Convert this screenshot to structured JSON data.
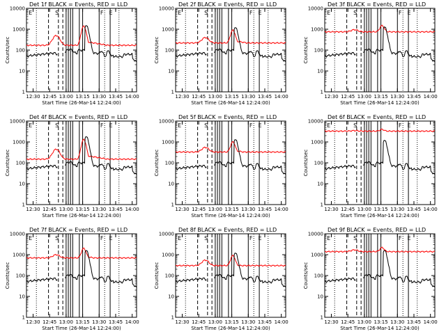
{
  "figure": {
    "background": "#ffffff",
    "ink_color": "#000000"
  },
  "chart_data": [
    {
      "type": "line",
      "title": "Det 1f BLACK = Events, RED = LLD",
      "xlabel": "Start Time (26-Mar-14 12:24:00)",
      "ylabel": "Counts/sec",
      "x_ticks": [
        "12:30",
        "12:45",
        "13:00",
        "13:15",
        "13:30",
        "13:45",
        "14:00"
      ],
      "y_ticks": [
        "1",
        "10",
        "100",
        "1000",
        "10000"
      ],
      "ylim": [
        1,
        10000
      ],
      "y_scale": "log",
      "xlim": [
        "12:24",
        "14:04"
      ],
      "grid": false,
      "legend": "none",
      "markers": [
        "E",
        "S",
        "F",
        "E"
      ],
      "series": [
        {
          "color": "#ff0000",
          "profile": "lld",
          "base": 170,
          "bump1": 500,
          "peak": 1400,
          "after": 250,
          "end": 160
        },
        {
          "color": "#000000",
          "profile": "events",
          "base": 50,
          "bump1": 110,
          "peak": 1500,
          "after": 70,
          "end": 15
        }
      ]
    },
    {
      "type": "line",
      "title": "Det 2f BLACK = Events, RED = LLD",
      "xlabel": "Start Time (26-Mar-14 12:24:00)",
      "ylabel": "Counts/sec",
      "x_ticks": [
        "12:30",
        "12:45",
        "13:00",
        "13:15",
        "13:30",
        "13:45",
        "14:00"
      ],
      "y_ticks": [
        "1",
        "10",
        "100",
        "1000",
        "10000"
      ],
      "ylim": [
        1,
        10000
      ],
      "y_scale": "log",
      "xlim": [
        "12:24",
        "14:04"
      ],
      "grid": false,
      "legend": "none",
      "markers": [
        "E",
        "S",
        "F",
        "E"
      ],
      "series": [
        {
          "color": "#ff0000",
          "profile": "lld",
          "base": 220,
          "bump1": 400,
          "peak": 900,
          "after": 270,
          "end": 200
        },
        {
          "color": "#000000",
          "profile": "events",
          "base": 50,
          "bump1": 110,
          "peak": 1200,
          "after": 70,
          "end": 15
        }
      ]
    },
    {
      "type": "line",
      "title": "Det 3f BLACK = Events, RED = LLD",
      "xlabel": "Start Time (26-Mar-14 12:24:00)",
      "ylabel": "Counts/sec",
      "x_ticks": [
        "12:30",
        "12:45",
        "13:00",
        "13:15",
        "13:30",
        "13:45",
        "14:00"
      ],
      "y_ticks": [
        "1",
        "10",
        "100",
        "1000",
        "10000"
      ],
      "ylim": [
        1,
        10000
      ],
      "y_scale": "log",
      "xlim": [
        "12:24",
        "14:04"
      ],
      "grid": false,
      "legend": "none",
      "markers": [
        "E",
        "S",
        "F",
        "E"
      ],
      "series": [
        {
          "color": "#ff0000",
          "profile": "lld",
          "base": 750,
          "bump1": 950,
          "peak": 1500,
          "after": 750,
          "end": 750
        },
        {
          "color": "#000000",
          "profile": "events",
          "base": 50,
          "bump1": 110,
          "peak": 1300,
          "after": 70,
          "end": 15
        }
      ]
    },
    {
      "type": "line",
      "title": "Det 4f BLACK = Events, RED = LLD",
      "xlabel": "Start Time (26-Mar-14 12:24:00)",
      "ylabel": "Counts/sec",
      "x_ticks": [
        "12:30",
        "12:45",
        "13:00",
        "13:15",
        "13:30",
        "13:45",
        "14:00"
      ],
      "y_ticks": [
        "1",
        "10",
        "100",
        "1000",
        "10000"
      ],
      "ylim": [
        1,
        10000
      ],
      "y_scale": "log",
      "xlim": [
        "12:24",
        "14:04"
      ],
      "grid": false,
      "legend": "none",
      "markers": [
        "E",
        "S",
        "F",
        "E"
      ],
      "series": [
        {
          "color": "#ff0000",
          "profile": "lld",
          "base": 150,
          "bump1": 450,
          "peak": 1300,
          "after": 220,
          "end": 150
        },
        {
          "color": "#000000",
          "profile": "events",
          "base": 50,
          "bump1": 110,
          "peak": 1800,
          "after": 70,
          "end": 15
        }
      ]
    },
    {
      "type": "line",
      "title": "Det 5f BLACK = Events, RED = LLD",
      "xlabel": "Start Time (26-Mar-14 12:24:00)",
      "ylabel": "Counts/sec",
      "x_ticks": [
        "12:30",
        "12:45",
        "13:00",
        "13:15",
        "13:30",
        "13:45",
        "14:00"
      ],
      "y_ticks": [
        "1",
        "10",
        "100",
        "1000",
        "10000"
      ],
      "ylim": [
        1,
        10000
      ],
      "y_scale": "log",
      "xlim": [
        "12:24",
        "14:04"
      ],
      "grid": false,
      "legend": "none",
      "markers": [
        "E",
        "S",
        "F",
        "E"
      ],
      "series": [
        {
          "color": "#ff0000",
          "profile": "lld",
          "base": 330,
          "bump1": 550,
          "peak": 1000,
          "after": 380,
          "end": 300
        },
        {
          "color": "#000000",
          "profile": "events",
          "base": 50,
          "bump1": 110,
          "peak": 1300,
          "after": 70,
          "end": 15
        }
      ]
    },
    {
      "type": "line",
      "title": "Det 6f BLACK = Events, RED = LLD",
      "xlabel": "Start Time (26-Mar-14 12:24:00)",
      "ylabel": "Counts/sec",
      "x_ticks": [
        "12:30",
        "12:45",
        "13:00",
        "13:15",
        "13:30",
        "13:45",
        "14:00"
      ],
      "y_ticks": [
        "1",
        "10",
        "100",
        "1000",
        "10000"
      ],
      "ylim": [
        1,
        10000
      ],
      "y_scale": "log",
      "xlim": [
        "12:24",
        "14:04"
      ],
      "grid": false,
      "legend": "none",
      "markers": [
        "E",
        "S",
        "F",
        "E"
      ],
      "series": [
        {
          "color": "#ff0000",
          "profile": "lld",
          "base": 3300,
          "bump1": 3500,
          "peak": 4000,
          "after": 3300,
          "end": 3300
        },
        {
          "color": "#000000",
          "profile": "events",
          "base": 50,
          "bump1": 110,
          "peak": 1200,
          "after": 70,
          "end": 15
        }
      ]
    },
    {
      "type": "line",
      "title": "Det 7f BLACK = Events, RED = LLD",
      "xlabel": "Start Time (26-Mar-14 12:24:00)",
      "ylabel": "Counts/sec",
      "x_ticks": [
        "12:30",
        "12:45",
        "13:00",
        "13:15",
        "13:30",
        "13:45",
        "14:00"
      ],
      "y_ticks": [
        "1",
        "10",
        "100",
        "1000",
        "10000"
      ],
      "ylim": [
        1,
        10000
      ],
      "y_scale": "log",
      "xlim": [
        "12:24",
        "14:04"
      ],
      "grid": false,
      "legend": "none",
      "markers": [
        "E",
        "S",
        "F",
        "E"
      ],
      "series": [
        {
          "color": "#ff0000",
          "profile": "lld",
          "base": 700,
          "bump1": 1000,
          "peak": 2000,
          "after": 800,
          "end": 700
        },
        {
          "color": "#000000",
          "profile": "events",
          "base": 50,
          "bump1": 110,
          "peak": 1600,
          "after": 70,
          "end": 15
        }
      ]
    },
    {
      "type": "line",
      "title": "Det 8f BLACK = Events, RED = LLD",
      "xlabel": "Start Time (26-Mar-14 12:24:00)",
      "ylabel": "Counts/sec",
      "x_ticks": [
        "12:30",
        "12:45",
        "13:00",
        "13:15",
        "13:30",
        "13:45",
        "14:00"
      ],
      "y_ticks": [
        "1",
        "10",
        "100",
        "1000",
        "10000"
      ],
      "ylim": [
        1,
        10000
      ],
      "y_scale": "log",
      "xlim": [
        "12:24",
        "14:04"
      ],
      "grid": false,
      "legend": "none",
      "markers": [
        "E",
        "S",
        "F",
        "E"
      ],
      "series": [
        {
          "color": "#ff0000",
          "profile": "lld",
          "base": 300,
          "bump1": 550,
          "peak": 900,
          "after": 320,
          "end": 300
        },
        {
          "color": "#000000",
          "profile": "events",
          "base": 50,
          "bump1": 110,
          "peak": 1200,
          "after": 70,
          "end": 15
        }
      ]
    },
    {
      "type": "line",
      "title": "Det 9f BLACK = Events, RED = LLD",
      "xlabel": "Start Time (26-Mar-14 12:24:00)",
      "ylabel": "Counts/sec",
      "x_ticks": [
        "12:30",
        "12:45",
        "13:00",
        "13:15",
        "13:30",
        "13:45",
        "14:00"
      ],
      "y_ticks": [
        "1",
        "10",
        "100",
        "1000",
        "10000"
      ],
      "ylim": [
        1,
        10000
      ],
      "y_scale": "log",
      "xlim": [
        "12:24",
        "14:04"
      ],
      "grid": false,
      "legend": "none",
      "markers": [
        "E",
        "S",
        "F",
        "E"
      ],
      "series": [
        {
          "color": "#ff0000",
          "profile": "lld",
          "base": 1400,
          "bump1": 1700,
          "peak": 2200,
          "after": 1500,
          "end": 1400
        },
        {
          "color": "#000000",
          "profile": "events",
          "base": 50,
          "bump1": 110,
          "peak": 1600,
          "after": 70,
          "end": 15
        }
      ]
    }
  ]
}
